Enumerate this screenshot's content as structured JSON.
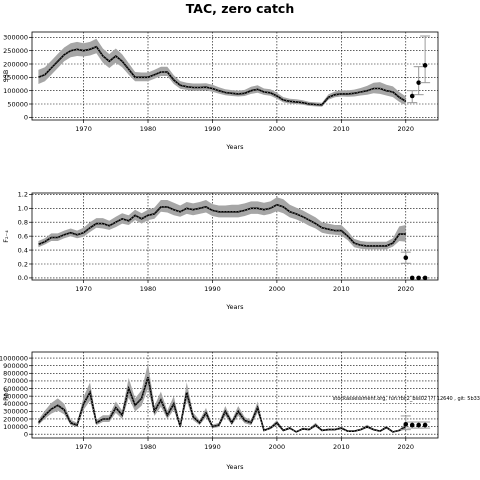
{
  "title": "TAC, zero catch",
  "colors": {
    "ribbon": "#a6a6a6",
    "line": "#000000",
    "marker": "#000000",
    "grid": "#000000"
  },
  "chart_data": [
    {
      "type": "line",
      "xlabel": "Years",
      "ylabel": "SSB",
      "xlim": [
        1962,
        2025
      ],
      "ylim": [
        -10000,
        320000
      ],
      "xticks": [
        1970,
        1980,
        1990,
        2000,
        2010,
        2020
      ],
      "yticks": [
        0,
        50000,
        100000,
        150000,
        200000,
        250000,
        300000
      ],
      "ytick_labels": [
        "0",
        "50000",
        "100000",
        "150000",
        "200000",
        "250000",
        "300000"
      ],
      "grid": true,
      "x": [
        1963,
        1964,
        1965,
        1966,
        1967,
        1968,
        1969,
        1970,
        1971,
        1972,
        1973,
        1974,
        1975,
        1976,
        1977,
        1978,
        1979,
        1980,
        1981,
        1982,
        1983,
        1984,
        1985,
        1986,
        1987,
        1988,
        1989,
        1990,
        1991,
        1992,
        1993,
        1994,
        1995,
        1996,
        1997,
        1998,
        1999,
        2000,
        2001,
        2002,
        2003,
        2004,
        2005,
        2006,
        2007,
        2008,
        2009,
        2010,
        2011,
        2012,
        2013,
        2014,
        2015,
        2016,
        2017,
        2018,
        2019,
        2020
      ],
      "estimate": [
        150000,
        160000,
        185000,
        210000,
        235000,
        250000,
        255000,
        250000,
        255000,
        265000,
        230000,
        210000,
        230000,
        210000,
        180000,
        150000,
        150000,
        150000,
        160000,
        170000,
        170000,
        140000,
        120000,
        115000,
        112000,
        112000,
        113000,
        108000,
        100000,
        93000,
        90000,
        88000,
        90000,
        100000,
        105000,
        95000,
        92000,
        80000,
        65000,
        60000,
        58000,
        55000,
        50000,
        48000,
        47000,
        75000,
        85000,
        88000,
        88000,
        90000,
        95000,
        100000,
        108000,
        108000,
        100000,
        95000,
        75000,
        60000
      ],
      "lower": [
        125000,
        135000,
        160000,
        185000,
        210000,
        225000,
        230000,
        228000,
        232000,
        240000,
        205000,
        185000,
        205000,
        188000,
        160000,
        135000,
        135000,
        135000,
        145000,
        155000,
        155000,
        125000,
        107000,
        103000,
        100000,
        100000,
        101000,
        96000,
        89000,
        83000,
        80000,
        78000,
        80000,
        88000,
        92000,
        84000,
        81000,
        70000,
        56000,
        52000,
        50000,
        47000,
        43000,
        41000,
        40000,
        66000,
        75000,
        78000,
        77000,
        78000,
        82000,
        85000,
        90000,
        88000,
        82000,
        76000,
        58000,
        45000
      ],
      "upper": [
        178000,
        188000,
        212000,
        238000,
        262000,
        278000,
        283000,
        278000,
        283000,
        295000,
        258000,
        237000,
        258000,
        236000,
        203000,
        170000,
        168000,
        168000,
        178000,
        190000,
        190000,
        158000,
        136000,
        130000,
        127000,
        127000,
        128000,
        122000,
        113000,
        105000,
        102000,
        100000,
        103000,
        115000,
        120000,
        108000,
        105000,
        92000,
        76000,
        70000,
        68000,
        64000,
        58000,
        56000,
        55000,
        86000,
        97000,
        101000,
        101000,
        104000,
        110000,
        118000,
        130000,
        132000,
        122000,
        116000,
        95000,
        78000
      ],
      "projection_years": [
        2021,
        2022,
        2023
      ],
      "projection": [
        80000,
        130000,
        195000
      ],
      "projection_lower": [
        55000,
        85000,
        130000
      ],
      "projection_upper": [
        100000,
        190000,
        305000
      ]
    },
    {
      "type": "line",
      "xlabel": "Years",
      "ylabel": "F₂₋₄",
      "xlim": [
        1962,
        2025
      ],
      "ylim": [
        -0.03,
        1.22
      ],
      "xticks": [
        1970,
        1980,
        1990,
        2000,
        2010,
        2020
      ],
      "yticks": [
        0.0,
        0.2,
        0.4,
        0.6,
        0.8,
        1.0,
        1.2
      ],
      "ytick_labels": [
        "0.0",
        "0.2",
        "0.4",
        "0.6",
        "0.8",
        "1.0",
        "1.2"
      ],
      "grid": true,
      "x": [
        1963,
        1964,
        1965,
        1966,
        1967,
        1968,
        1969,
        1970,
        1971,
        1972,
        1973,
        1974,
        1975,
        1976,
        1977,
        1978,
        1979,
        1980,
        1981,
        1982,
        1983,
        1984,
        1985,
        1986,
        1987,
        1988,
        1989,
        1990,
        1991,
        1992,
        1993,
        1994,
        1995,
        1996,
        1997,
        1998,
        1999,
        2000,
        2001,
        2002,
        2003,
        2004,
        2005,
        2006,
        2007,
        2008,
        2009,
        2010,
        2011,
        2012,
        2013,
        2014,
        2015,
        2016,
        2017,
        2018,
        2019,
        2020
      ],
      "estimate": [
        0.48,
        0.52,
        0.58,
        0.58,
        0.62,
        0.65,
        0.62,
        0.65,
        0.72,
        0.78,
        0.78,
        0.75,
        0.8,
        0.85,
        0.82,
        0.9,
        0.85,
        0.9,
        0.92,
        1.02,
        1.02,
        0.98,
        0.95,
        1.0,
        0.98,
        1.0,
        1.02,
        0.97,
        0.95,
        0.95,
        0.95,
        0.95,
        0.97,
        1.0,
        1.0,
        0.98,
        1.0,
        1.05,
        1.02,
        0.95,
        0.92,
        0.88,
        0.83,
        0.78,
        0.72,
        0.7,
        0.68,
        0.68,
        0.6,
        0.5,
        0.47,
        0.46,
        0.46,
        0.46,
        0.46,
        0.5,
        0.63,
        0.63
      ],
      "lower": [
        0.44,
        0.48,
        0.53,
        0.53,
        0.57,
        0.6,
        0.57,
        0.59,
        0.66,
        0.72,
        0.71,
        0.69,
        0.73,
        0.78,
        0.76,
        0.83,
        0.78,
        0.83,
        0.85,
        0.95,
        0.94,
        0.9,
        0.88,
        0.92,
        0.9,
        0.92,
        0.94,
        0.89,
        0.87,
        0.87,
        0.87,
        0.87,
        0.89,
        0.92,
        0.92,
        0.9,
        0.92,
        0.96,
        0.93,
        0.87,
        0.84,
        0.8,
        0.75,
        0.71,
        0.65,
        0.63,
        0.62,
        0.61,
        0.54,
        0.44,
        0.42,
        0.41,
        0.41,
        0.41,
        0.41,
        0.45,
        0.53,
        0.52
      ],
      "upper": [
        0.53,
        0.57,
        0.64,
        0.64,
        0.68,
        0.71,
        0.68,
        0.72,
        0.8,
        0.86,
        0.86,
        0.82,
        0.88,
        0.93,
        0.9,
        0.98,
        0.93,
        0.98,
        1.01,
        1.12,
        1.12,
        1.08,
        1.04,
        1.09,
        1.07,
        1.09,
        1.12,
        1.06,
        1.04,
        1.04,
        1.05,
        1.05,
        1.07,
        1.1,
        1.1,
        1.08,
        1.1,
        1.16,
        1.13,
        1.05,
        1.01,
        0.97,
        0.92,
        0.87,
        0.8,
        0.78,
        0.76,
        0.76,
        0.67,
        0.56,
        0.53,
        0.52,
        0.52,
        0.52,
        0.52,
        0.57,
        0.74,
        0.76
      ],
      "projection_years": [
        2020,
        2021,
        2022,
        2023
      ],
      "projection": [
        0.29,
        0.0,
        0.0,
        0.0
      ],
      "projection_lower": [
        0.21,
        0.0,
        0.0,
        0.0
      ],
      "projection_upper": [
        0.37,
        0.0,
        0.0,
        0.0
      ]
    },
    {
      "type": "line",
      "xlabel": "Years",
      "ylabel": "Rec",
      "xlim": [
        1962,
        2025
      ],
      "ylim": [
        -50000,
        1080000
      ],
      "xticks": [
        1970,
        1980,
        1990,
        2000,
        2010,
        2020
      ],
      "yticks": [
        0,
        100000,
        200000,
        300000,
        400000,
        500000,
        600000,
        700000,
        800000,
        900000,
        1000000
      ],
      "ytick_labels": [
        "0",
        "100000",
        "200000",
        "300000",
        "400000",
        "500000",
        "600000",
        "700000",
        "800000",
        "900000",
        "1000000"
      ],
      "grid": true,
      "annotation": "stockassessment.org, run:rbc2_bss02 (?) 12640 , git: 5b33",
      "x": [
        1963,
        1964,
        1965,
        1966,
        1967,
        1968,
        1969,
        1970,
        1971,
        1972,
        1973,
        1974,
        1975,
        1976,
        1977,
        1978,
        1979,
        1980,
        1981,
        1982,
        1983,
        1984,
        1985,
        1986,
        1987,
        1988,
        1989,
        1990,
        1991,
        1992,
        1993,
        1994,
        1995,
        1996,
        1997,
        1998,
        1999,
        2000,
        2001,
        2002,
        2003,
        2004,
        2005,
        2006,
        2007,
        2008,
        2009,
        2010,
        2011,
        2012,
        2013,
        2014,
        2015,
        2016,
        2017,
        2018,
        2019,
        2020
      ],
      "estimate": [
        150000,
        250000,
        330000,
        380000,
        320000,
        150000,
        120000,
        400000,
        550000,
        150000,
        200000,
        200000,
        350000,
        250000,
        600000,
        380000,
        470000,
        750000,
        300000,
        450000,
        250000,
        400000,
        100000,
        550000,
        230000,
        150000,
        280000,
        100000,
        120000,
        300000,
        150000,
        300000,
        180000,
        150000,
        350000,
        50000,
        80000,
        150000,
        50000,
        80000,
        30000,
        70000,
        60000,
        120000,
        50000,
        60000,
        60000,
        80000,
        40000,
        40000,
        60000,
        100000,
        60000,
        40000,
        90000,
        30000,
        50000,
        100000
      ],
      "lower": [
        120000,
        205000,
        270000,
        310000,
        260000,
        120000,
        95000,
        320000,
        440000,
        120000,
        160000,
        160000,
        280000,
        200000,
        480000,
        300000,
        375000,
        600000,
        240000,
        360000,
        200000,
        320000,
        80000,
        440000,
        185000,
        120000,
        225000,
        80000,
        95000,
        240000,
        120000,
        240000,
        145000,
        120000,
        280000,
        40000,
        64000,
        120000,
        40000,
        64000,
        24000,
        56000,
        48000,
        96000,
        40000,
        48000,
        48000,
        64000,
        32000,
        32000,
        48000,
        80000,
        48000,
        32000,
        72000,
        24000,
        40000,
        65000
      ],
      "upper": [
        190000,
        310000,
        410000,
        470000,
        400000,
        190000,
        150000,
        490000,
        680000,
        190000,
        250000,
        250000,
        430000,
        310000,
        740000,
        470000,
        580000,
        930000,
        370000,
        560000,
        310000,
        500000,
        125000,
        680000,
        285000,
        185000,
        345000,
        125000,
        150000,
        370000,
        185000,
        370000,
        225000,
        185000,
        430000,
        62000,
        100000,
        185000,
        62000,
        100000,
        37000,
        87000,
        75000,
        150000,
        62000,
        75000,
        75000,
        100000,
        50000,
        50000,
        75000,
        125000,
        75000,
        50000,
        112000,
        37000,
        62000,
        150000
      ],
      "projection_years": [
        2020,
        2021,
        2022,
        2023
      ],
      "projection": [
        130000,
        120000,
        120000,
        120000
      ],
      "projection_lower": [
        60000,
        80000,
        80000,
        80000
      ],
      "projection_upper": [
        240000,
        160000,
        160000,
        160000
      ]
    }
  ]
}
